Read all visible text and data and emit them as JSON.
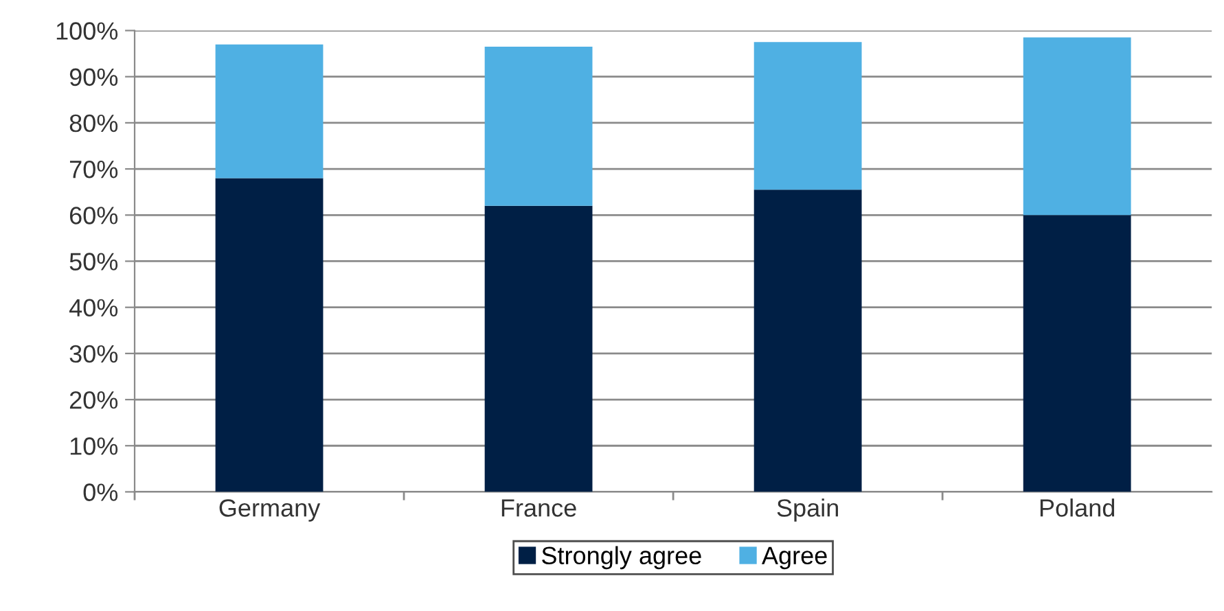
{
  "chart_data": {
    "type": "bar",
    "stacked": true,
    "categories": [
      "Germany",
      "France",
      "Spain",
      "Poland"
    ],
    "series": [
      {
        "name": "Strongly agree",
        "color": "#001f45",
        "values": [
          68,
          62,
          65.5,
          60
        ]
      },
      {
        "name": "Agree",
        "color": "#4fb0e3",
        "values": [
          29,
          34.5,
          32,
          38.5
        ]
      }
    ],
    "ylim": [
      0,
      100
    ],
    "yticks": [
      {
        "value": 0,
        "label": "0%"
      },
      {
        "value": 10,
        "label": "10%"
      },
      {
        "value": 20,
        "label": "20%"
      },
      {
        "value": 30,
        "label": "30%"
      },
      {
        "value": 40,
        "label": "40%"
      },
      {
        "value": 50,
        "label": "50%"
      },
      {
        "value": 60,
        "label": "60%"
      },
      {
        "value": 70,
        "label": "70%"
      },
      {
        "value": 80,
        "label": "80%"
      },
      {
        "value": 90,
        "label": "90%"
      },
      {
        "value": 100,
        "label": "100%"
      }
    ],
    "grid": "y",
    "legend": "bottom"
  }
}
